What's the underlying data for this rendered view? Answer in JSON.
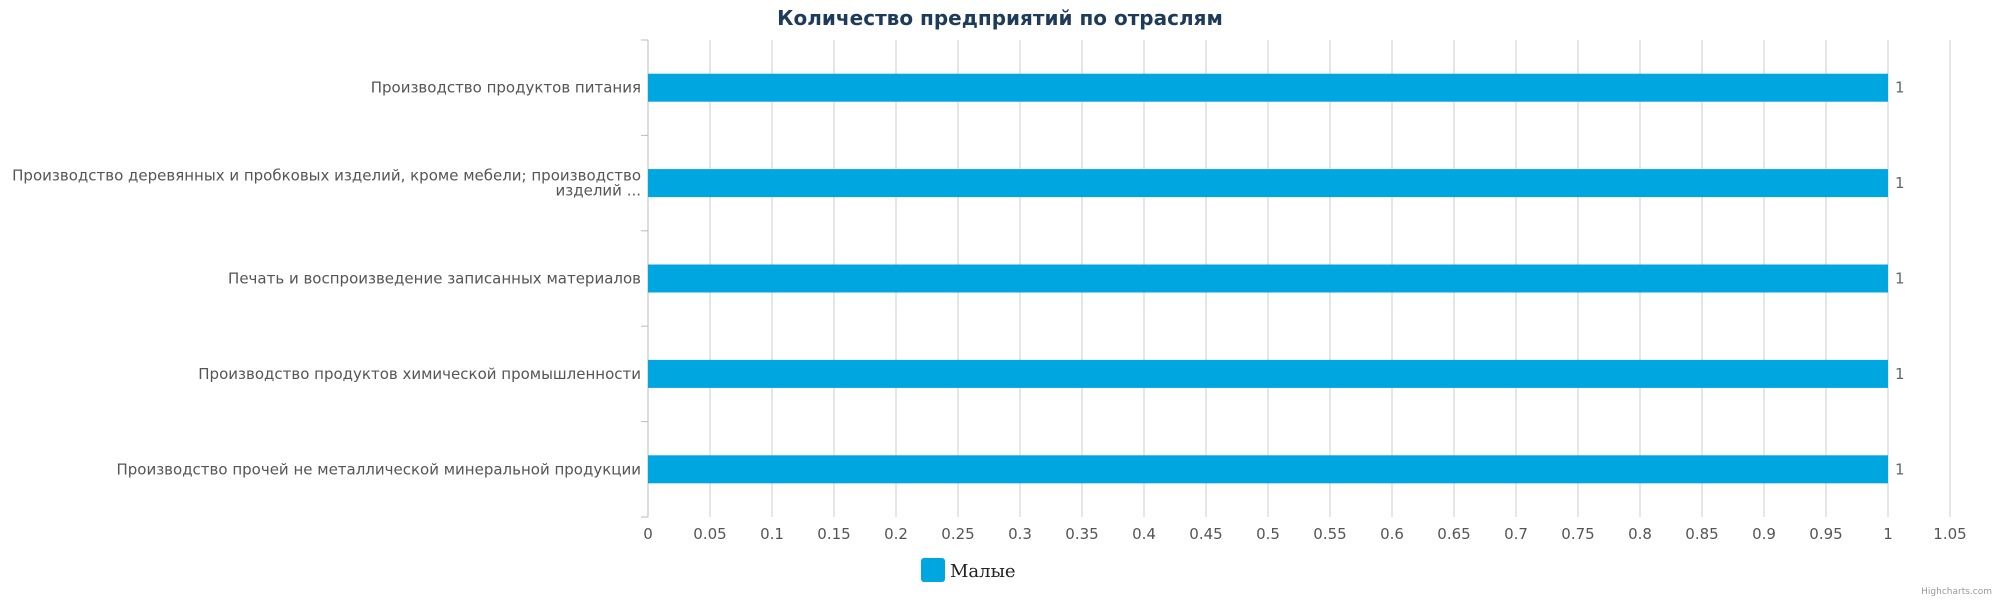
{
  "chart_data": {
    "type": "bar",
    "orientation": "horizontal",
    "title": "Количество предприятий по отраслям",
    "categories": [
      [
        "Производство продуктов питания"
      ],
      [
        "Производство деревянных и пробковых изделий, кроме мебели; производство",
        "изделий ..."
      ],
      [
        "Печать и воспроизведение записанных материалов"
      ],
      [
        "Производство продуктов химической промышленности"
      ],
      [
        "Производство прочей не металлической минеральной продукции"
      ]
    ],
    "series": [
      {
        "name": "Малые",
        "values": [
          1,
          1,
          1,
          1,
          1
        ],
        "color": "#00a6e0"
      }
    ],
    "data_labels": [
      "1",
      "1",
      "1",
      "1",
      "1"
    ],
    "xlim": [
      0,
      1.05
    ],
    "x_ticks": [
      "0",
      "0.05",
      "0.1",
      "0.15",
      "0.2",
      "0.25",
      "0.3",
      "0.35",
      "0.4",
      "0.45",
      "0.5",
      "0.55",
      "0.6",
      "0.65",
      "0.7",
      "0.75",
      "0.8",
      "0.85",
      "0.9",
      "0.95",
      "1",
      "1.05"
    ],
    "grid": true,
    "legend_position": "bottom"
  },
  "credits": "Highcharts.com",
  "colors": {
    "gridline": "#cccccc",
    "axis": "#bbbbbb"
  }
}
